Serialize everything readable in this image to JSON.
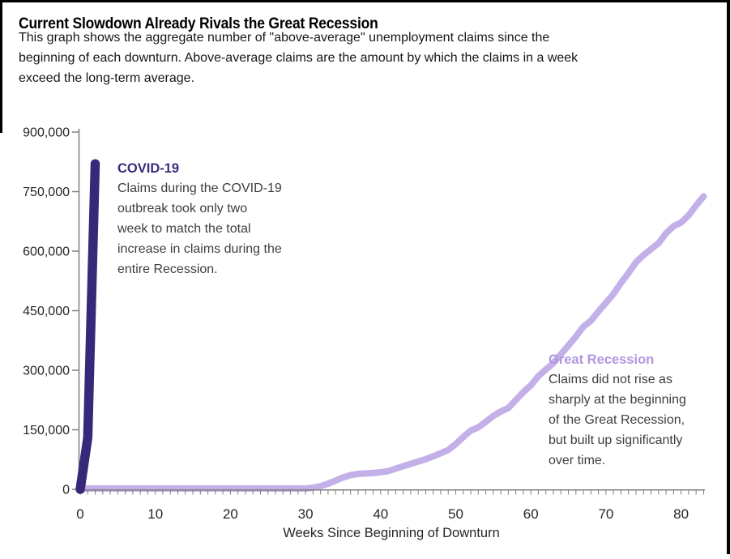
{
  "page": {
    "title": "Current Slowdown Already Rivals the Great Recession",
    "subtitle": "This graph shows the aggregate number of \"above-average\" unemployment claims since the\nbeginning of each downturn. Above-average claims are the amount by which the claims in a week\nexceed the long-term average."
  },
  "annotations": {
    "covid": {
      "title": "COVID-19",
      "body": "Claims during the COVID-19\noutbreak took only two\nweek to match the total\nincrease in claims during the\nentire Recession."
    },
    "recession": {
      "title": "Great Recession",
      "body": "Claims did not rise as\nsharply at the beginning\nof the Great Recession,\nbut built up significantly\nover time."
    }
  },
  "chart_data": {
    "type": "line",
    "title": "Current Slowdown Already Rivals the Great Recession",
    "xlabel": "Weeks Since Beginning of Downturn",
    "ylabel": "",
    "xlim": [
      0,
      83
    ],
    "ylim": [
      0,
      900000
    ],
    "grid": false,
    "legend_position": "inline-annotations",
    "axis_color": "#7F7F7F",
    "tick_color": "#262626",
    "x_ticks": [
      0,
      10,
      20,
      30,
      40,
      50,
      60,
      70,
      80
    ],
    "y_ticks": [
      0,
      150000,
      300000,
      450000,
      600000,
      750000,
      900000
    ],
    "y_tick_labels": [
      "0",
      "150,000",
      "300,000",
      "450,000",
      "600,000",
      "750,000",
      "900,000"
    ],
    "series": [
      {
        "name": "COVID-19",
        "color": "#37297A",
        "x": [
          0,
          1,
          2
        ],
        "values": [
          0,
          130000,
          820000
        ]
      },
      {
        "name": "Great Recession",
        "color": "#C4B0E8",
        "x_start": 0,
        "x_step": 1,
        "values": [
          0,
          2000,
          2000,
          2000,
          2000,
          2000,
          2000,
          2000,
          2000,
          2000,
          2000,
          2000,
          2000,
          2000,
          2000,
          2000,
          2000,
          2000,
          2000,
          2000,
          2000,
          2000,
          2000,
          2000,
          2000,
          2000,
          2000,
          2000,
          2000,
          2000,
          2000,
          4000,
          8000,
          14000,
          22000,
          30000,
          36000,
          39000,
          40000,
          41000,
          43000,
          46000,
          52000,
          58000,
          64000,
          70000,
          76000,
          83000,
          91000,
          99000,
          114000,
          132000,
          148000,
          156000,
          170000,
          185000,
          196000,
          205000,
          225000,
          245000,
          262000,
          285000,
          302000,
          318000,
          340000,
          362000,
          385000,
          410000,
          425000,
          448000,
          470000,
          492000,
          520000,
          545000,
          572000,
          590000,
          605000,
          620000,
          645000,
          663000,
          672000,
          690000,
          715000,
          738000
        ]
      }
    ]
  }
}
